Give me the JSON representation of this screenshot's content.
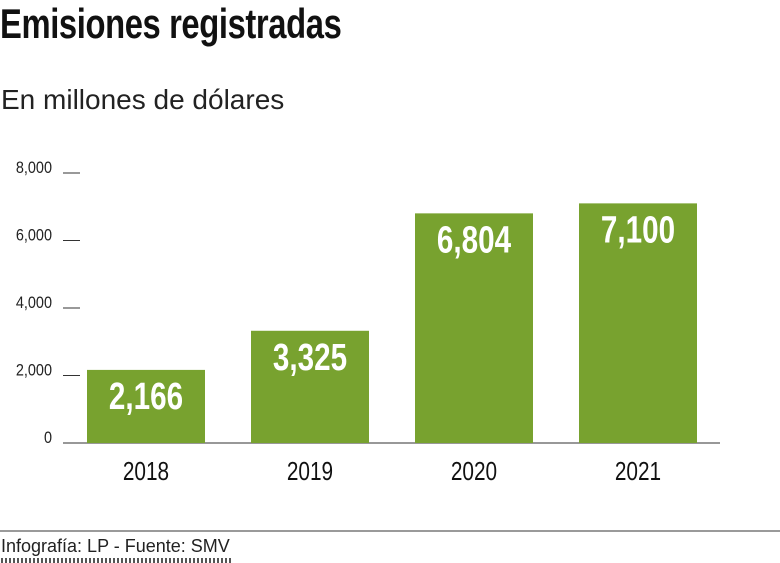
{
  "chart_data": {
    "type": "bar",
    "title": "Emisiones registradas",
    "subtitle": "En millones de dólares",
    "categories": [
      "2018",
      "2019",
      "2020",
      "2021"
    ],
    "values": [
      2166,
      3325,
      6804,
      7100
    ],
    "value_labels": [
      "2,166",
      "3,325",
      "6,804",
      "7,100"
    ],
    "ylim": [
      0,
      8000
    ],
    "yticks": [
      0,
      2000,
      4000,
      6000,
      8000
    ],
    "ytick_labels": [
      "0",
      "2,000",
      "4,000",
      "6,000",
      "8,000"
    ],
    "bar_color": "#78a22f",
    "grid": false
  },
  "footer": {
    "source": "Infografía: LP - Fuente: SMV"
  }
}
